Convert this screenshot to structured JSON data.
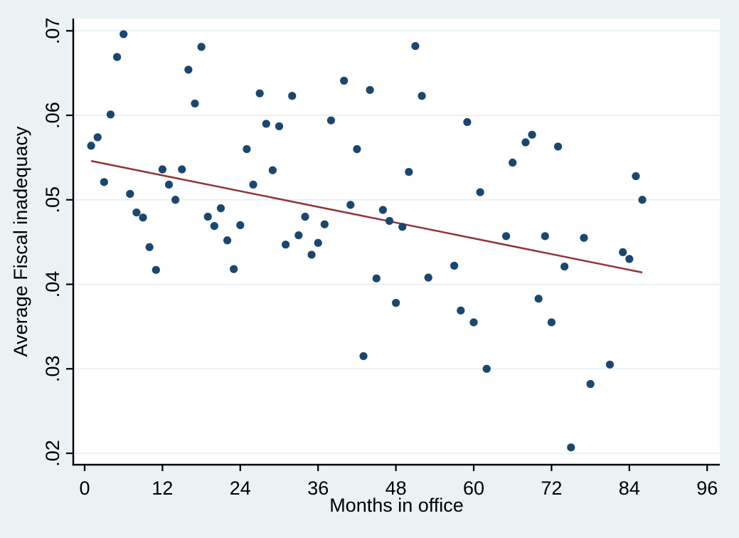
{
  "chart_data": {
    "type": "scatter",
    "title": "",
    "xlabel": "Months in office",
    "ylabel": "Average Fiscal inadequacy",
    "xlim": [
      0,
      96
    ],
    "ylim": [
      0.02,
      0.07
    ],
    "grid": "horizontal",
    "legend": "none",
    "x_ticks": [
      {
        "value": 0,
        "label": "0"
      },
      {
        "value": 12,
        "label": "12"
      },
      {
        "value": 24,
        "label": "24"
      },
      {
        "value": 36,
        "label": "36"
      },
      {
        "value": 48,
        "label": "48"
      },
      {
        "value": 60,
        "label": "60"
      },
      {
        "value": 72,
        "label": "72"
      },
      {
        "value": 84,
        "label": "84"
      },
      {
        "value": 96,
        "label": "96"
      }
    ],
    "y_ticks": [
      {
        "value": 0.02,
        "label": ".02"
      },
      {
        "value": 0.03,
        "label": ".03"
      },
      {
        "value": 0.04,
        "label": ".04"
      },
      {
        "value": 0.05,
        "label": ".05"
      },
      {
        "value": 0.06,
        "label": ".06"
      },
      {
        "value": 0.07,
        "label": ".07"
      }
    ],
    "colors": {
      "marker": "#1A476F",
      "fit_line": "#90353B",
      "background": "#EAF2F3",
      "plot_background": "#FFFFFF",
      "gridline": "#E5EDF1",
      "axis": "#000000"
    },
    "points": [
      [
        1,
        0.0564
      ],
      [
        2,
        0.0574
      ],
      [
        3,
        0.0521
      ],
      [
        4,
        0.0601
      ],
      [
        5,
        0.0669
      ],
      [
        6,
        0.0696
      ],
      [
        7,
        0.0507
      ],
      [
        8,
        0.0485
      ],
      [
        9,
        0.0479
      ],
      [
        10,
        0.0444
      ],
      [
        11,
        0.0417
      ],
      [
        12,
        0.0536
      ],
      [
        13,
        0.0518
      ],
      [
        14,
        0.05
      ],
      [
        15,
        0.0536
      ],
      [
        16,
        0.0654
      ],
      [
        17,
        0.0614
      ],
      [
        18,
        0.0681
      ],
      [
        19,
        0.048
      ],
      [
        20,
        0.0469
      ],
      [
        21,
        0.049
      ],
      [
        22,
        0.0452
      ],
      [
        23,
        0.0418
      ],
      [
        24,
        0.047
      ],
      [
        25,
        0.056
      ],
      [
        26,
        0.0518
      ],
      [
        27,
        0.0626
      ],
      [
        28,
        0.059
      ],
      [
        29,
        0.0535
      ],
      [
        30,
        0.0587
      ],
      [
        31,
        0.0447
      ],
      [
        32,
        0.0623
      ],
      [
        33,
        0.0458
      ],
      [
        34,
        0.048
      ],
      [
        35,
        0.0435
      ],
      [
        36,
        0.0449
      ],
      [
        37,
        0.0471
      ],
      [
        38,
        0.0594
      ],
      [
        40,
        0.0641
      ],
      [
        41,
        0.0494
      ],
      [
        42,
        0.056
      ],
      [
        43,
        0.0315
      ],
      [
        44,
        0.063
      ],
      [
        45,
        0.0407
      ],
      [
        46,
        0.0488
      ],
      [
        47,
        0.0475
      ],
      [
        48,
        0.0378
      ],
      [
        49,
        0.0468
      ],
      [
        50,
        0.0533
      ],
      [
        51,
        0.0682
      ],
      [
        52,
        0.0623
      ],
      [
        53,
        0.0408
      ],
      [
        57,
        0.0422
      ],
      [
        58,
        0.0369
      ],
      [
        59,
        0.0592
      ],
      [
        60,
        0.0355
      ],
      [
        61,
        0.0509
      ],
      [
        62,
        0.03
      ],
      [
        65,
        0.0457
      ],
      [
        66,
        0.0544
      ],
      [
        68,
        0.0568
      ],
      [
        69,
        0.0577
      ],
      [
        70,
        0.0383
      ],
      [
        71,
        0.0457
      ],
      [
        72,
        0.0355
      ],
      [
        73,
        0.0563
      ],
      [
        74,
        0.0421
      ],
      [
        75,
        0.0207
      ],
      [
        77,
        0.0455
      ],
      [
        78,
        0.0282
      ],
      [
        81,
        0.0305
      ],
      [
        83,
        0.0438
      ],
      [
        84,
        0.043
      ],
      [
        85,
        0.0528
      ],
      [
        86,
        0.05
      ]
    ],
    "fit_line": {
      "x1": 1,
      "y1": 0.0546,
      "x2": 86,
      "y2": 0.0414
    }
  }
}
